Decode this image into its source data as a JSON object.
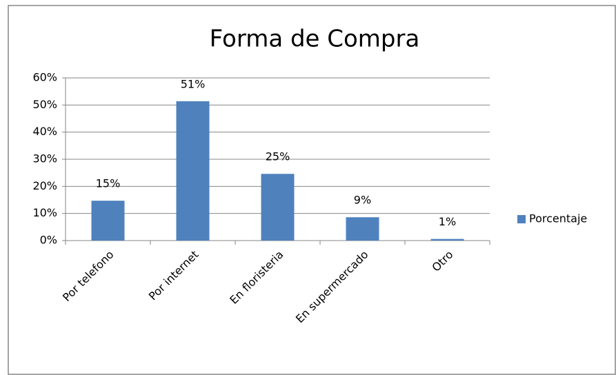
{
  "chart_data": {
    "type": "bar",
    "title": "Forma de Compra",
    "categories": [
      "Por telefono",
      "Por internet",
      "En floristeria",
      "En supermercado",
      "Otro"
    ],
    "series": [
      {
        "name": "Porcentaje",
        "color": "#4f81bd",
        "values": [
          14.7,
          51.4,
          24.6,
          8.6,
          0.6
        ],
        "value_labels": [
          "15%",
          "51%",
          "25%",
          "9%",
          "1%"
        ]
      }
    ],
    "ylim": [
      0,
      60
    ],
    "yticks": [
      {
        "value": 0,
        "label": "0%"
      },
      {
        "value": 10,
        "label": "10%"
      },
      {
        "value": 20,
        "label": "20%"
      },
      {
        "value": 30,
        "label": "30%"
      },
      {
        "value": 40,
        "label": "40%"
      },
      {
        "value": 50,
        "label": "50%"
      },
      {
        "value": 60,
        "label": "60%"
      }
    ],
    "grid": true,
    "legend": "right"
  }
}
